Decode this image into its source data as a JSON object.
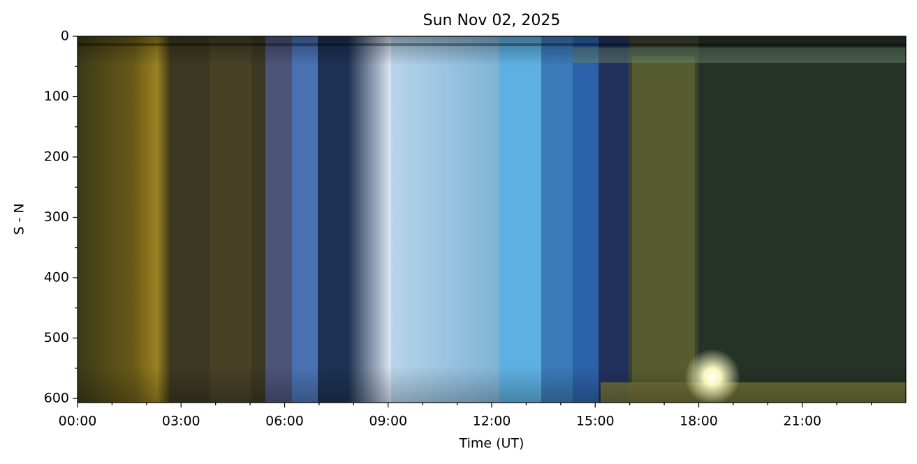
{
  "chart_data": {
    "type": "image",
    "title": "Sun Nov 02, 2025",
    "xlabel": "Time (UT)",
    "ylabel": "S - N",
    "xlim": [
      0,
      24
    ],
    "xticks": [
      {
        "value": 0,
        "label": "00:00"
      },
      {
        "value": 3,
        "label": "03:00"
      },
      {
        "value": 6,
        "label": "06:00"
      },
      {
        "value": 9,
        "label": "09:00"
      },
      {
        "value": 12,
        "label": "12:00"
      },
      {
        "value": 15,
        "label": "15:00"
      },
      {
        "value": 18,
        "label": "18:00"
      },
      {
        "value": 21,
        "label": "21:00"
      }
    ],
    "xminorticks": [
      1,
      2,
      4,
      5,
      7,
      8,
      10,
      11,
      13,
      14,
      16,
      17,
      19,
      20,
      22,
      23
    ],
    "ylim": [
      607,
      0
    ],
    "yticks": [
      0,
      100,
      200,
      300,
      400,
      500,
      600
    ],
    "yminorticks": [
      50,
      150,
      250,
      350,
      450,
      550
    ]
  }
}
